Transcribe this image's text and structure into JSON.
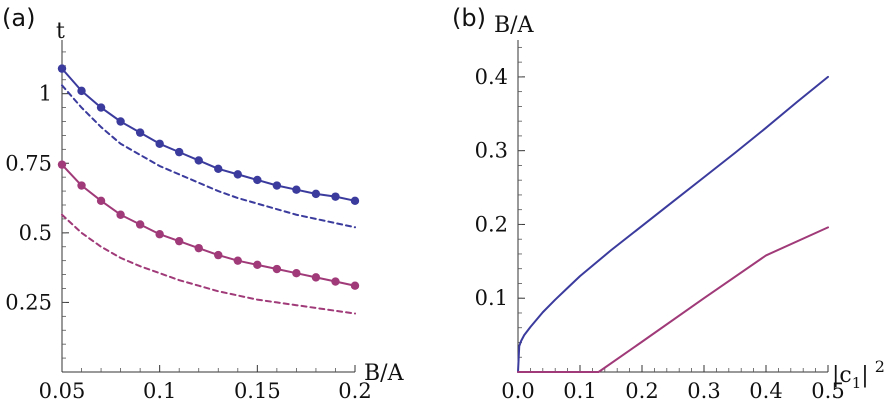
{
  "chart_data": [
    {
      "panel_label": "(a)",
      "type": "line",
      "xlabel": "B/A",
      "ylabel": "t",
      "xlim": [
        0.05,
        0.2
      ],
      "ylim": [
        0.0,
        1.2
      ],
      "xticks": [
        0.05,
        0.1,
        0.15,
        0.2
      ],
      "xtick_labels": [
        "0.05",
        "0.1",
        "0.15",
        "0.2"
      ],
      "yticks": [
        0.25,
        0.5,
        0.75,
        1.0
      ],
      "ytick_labels": [
        "0.25",
        "0.5",
        "0.75",
        "1"
      ],
      "series": [
        {
          "name": "blue solid",
          "color": "#3b3b9e",
          "style": "solid",
          "x": [
            0.05,
            0.06,
            0.07,
            0.08,
            0.09,
            0.1,
            0.11,
            0.12,
            0.13,
            0.14,
            0.15,
            0.16,
            0.17,
            0.18,
            0.19,
            0.2
          ],
          "values": [
            1.09,
            1.01,
            0.95,
            0.9,
            0.86,
            0.82,
            0.79,
            0.76,
            0.73,
            0.71,
            0.69,
            0.67,
            0.655,
            0.64,
            0.63,
            0.615
          ]
        },
        {
          "name": "blue dots",
          "color": "#3b3b9e",
          "style": "markers",
          "x": [
            0.05,
            0.06,
            0.07,
            0.08,
            0.09,
            0.1,
            0.11,
            0.12,
            0.13,
            0.14,
            0.15,
            0.16,
            0.17,
            0.18,
            0.19,
            0.2
          ],
          "values": [
            1.09,
            1.01,
            0.95,
            0.9,
            0.86,
            0.82,
            0.79,
            0.76,
            0.73,
            0.71,
            0.69,
            0.67,
            0.655,
            0.64,
            0.63,
            0.615
          ]
        },
        {
          "name": "blue dashed",
          "color": "#3b3b9e",
          "style": "dashed",
          "x": [
            0.05,
            0.06,
            0.07,
            0.08,
            0.09,
            0.1,
            0.11,
            0.12,
            0.13,
            0.14,
            0.15,
            0.16,
            0.17,
            0.18,
            0.19,
            0.2
          ],
          "values": [
            1.03,
            0.95,
            0.88,
            0.82,
            0.78,
            0.74,
            0.71,
            0.68,
            0.65,
            0.625,
            0.605,
            0.585,
            0.565,
            0.55,
            0.535,
            0.52
          ]
        },
        {
          "name": "magenta solid",
          "color": "#a03a78",
          "style": "solid",
          "x": [
            0.05,
            0.06,
            0.07,
            0.08,
            0.09,
            0.1,
            0.11,
            0.12,
            0.13,
            0.14,
            0.15,
            0.16,
            0.17,
            0.18,
            0.19,
            0.2
          ],
          "values": [
            0.745,
            0.67,
            0.615,
            0.565,
            0.53,
            0.495,
            0.47,
            0.445,
            0.42,
            0.4,
            0.385,
            0.37,
            0.355,
            0.34,
            0.325,
            0.31
          ]
        },
        {
          "name": "magenta dots",
          "color": "#a03a78",
          "style": "markers",
          "x": [
            0.05,
            0.06,
            0.07,
            0.08,
            0.09,
            0.1,
            0.11,
            0.12,
            0.13,
            0.14,
            0.15,
            0.16,
            0.17,
            0.18,
            0.19,
            0.2
          ],
          "values": [
            0.745,
            0.67,
            0.615,
            0.565,
            0.53,
            0.495,
            0.47,
            0.445,
            0.42,
            0.4,
            0.385,
            0.37,
            0.355,
            0.34,
            0.325,
            0.31
          ]
        },
        {
          "name": "magenta dashed",
          "color": "#a03a78",
          "style": "dashed",
          "x": [
            0.05,
            0.06,
            0.07,
            0.08,
            0.09,
            0.1,
            0.11,
            0.12,
            0.13,
            0.14,
            0.15,
            0.16,
            0.17,
            0.18,
            0.19,
            0.2
          ],
          "values": [
            0.565,
            0.5,
            0.45,
            0.41,
            0.38,
            0.355,
            0.33,
            0.31,
            0.29,
            0.275,
            0.26,
            0.25,
            0.24,
            0.23,
            0.22,
            0.21
          ]
        }
      ]
    },
    {
      "panel_label": "(b)",
      "type": "line",
      "xlabel": "|c₁|²",
      "xlabel_main": "|c",
      "xlabel_sub": "1",
      "xlabel_close": "|",
      "xlabel_sup": "2",
      "ylabel": "B/A",
      "xlim": [
        0.0,
        0.5
      ],
      "ylim": [
        0.0,
        0.45
      ],
      "xticks": [
        0.0,
        0.1,
        0.2,
        0.3,
        0.4,
        0.5
      ],
      "xtick_labels": [
        "0.0",
        "0.1",
        "0.2",
        "0.3",
        "0.4",
        "0.5"
      ],
      "yticks": [
        0.1,
        0.2,
        0.3,
        0.4
      ],
      "ytick_labels": [
        "0.1",
        "0.2",
        "0.3",
        "0.4"
      ],
      "series": [
        {
          "name": "blue curve",
          "color": "#3b3b9e",
          "style": "solid",
          "x": [
            0.0,
            0.002,
            0.005,
            0.01,
            0.02,
            0.04,
            0.06,
            0.08,
            0.1,
            0.15,
            0.2,
            0.25,
            0.3,
            0.35,
            0.4,
            0.45,
            0.5
          ],
          "values": [
            0.0,
            0.035,
            0.042,
            0.05,
            0.061,
            0.081,
            0.098,
            0.114,
            0.13,
            0.165,
            0.198,
            0.231,
            0.264,
            0.297,
            0.331,
            0.366,
            0.4
          ]
        },
        {
          "name": "magenta curve",
          "color": "#a03a78",
          "style": "solid",
          "x": [
            0.0,
            0.13,
            0.2,
            0.3,
            0.4,
            0.5
          ],
          "values": [
            0.0,
            0.0,
            0.041,
            0.1,
            0.158,
            0.196
          ]
        }
      ]
    }
  ]
}
